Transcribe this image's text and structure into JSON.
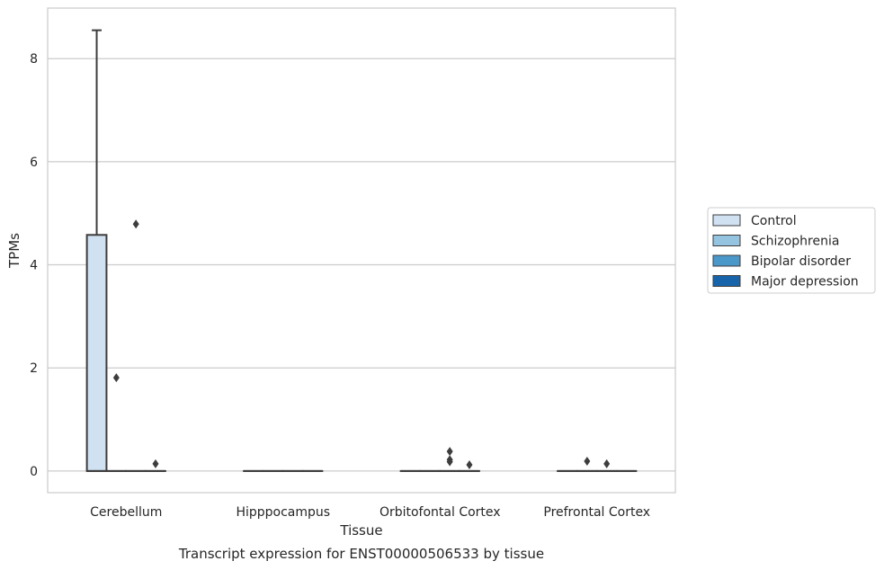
{
  "caption": "Transcript expression for ENST00000506533 by tissue",
  "chart_data": {
    "type": "box",
    "title": "",
    "xlabel": "Tissue",
    "ylabel": "TPMs",
    "categories": [
      "Cerebellum",
      "Hipppocampus",
      "Orbitofontal Cortex",
      "Prefrontal Cortex"
    ],
    "ylim": [
      -0.42,
      8.98
    ],
    "yticks": [
      0,
      2,
      4,
      6,
      8
    ],
    "grid": "horizontal",
    "legend_position": "right",
    "series": [
      {
        "name": "Control",
        "color": "#d0e1f2",
        "boxes": [
          {
            "q1": 0,
            "median": 0,
            "q3": 4.58,
            "whisker_low": 0,
            "whisker_high": 8.55,
            "outliers": []
          },
          {
            "q1": 0,
            "median": 0,
            "q3": 0,
            "whisker_low": 0,
            "whisker_high": 0,
            "outliers": []
          },
          {
            "q1": 0,
            "median": 0,
            "q3": 0,
            "whisker_low": 0,
            "whisker_high": 0,
            "outliers": []
          },
          {
            "q1": 0,
            "median": 0,
            "q3": 0,
            "whisker_low": 0,
            "whisker_high": 0,
            "outliers": []
          }
        ]
      },
      {
        "name": "Schizophrenia",
        "color": "#94c4df",
        "boxes": [
          {
            "q1": 0,
            "median": 0,
            "q3": 0,
            "whisker_low": 0,
            "whisker_high": 0,
            "outliers": [
              1.81
            ]
          },
          {
            "q1": 0,
            "median": 0,
            "q3": 0,
            "whisker_low": 0,
            "whisker_high": 0,
            "outliers": []
          },
          {
            "q1": 0,
            "median": 0,
            "q3": 0,
            "whisker_low": 0,
            "whisker_high": 0,
            "outliers": []
          },
          {
            "q1": 0,
            "median": 0,
            "q3": 0,
            "whisker_low": 0,
            "whisker_high": 0,
            "outliers": [
              0.19
            ]
          }
        ]
      },
      {
        "name": "Bipolar disorder",
        "color": "#4a98c9",
        "boxes": [
          {
            "q1": 0,
            "median": 0,
            "q3": 0,
            "whisker_low": 0,
            "whisker_high": 0,
            "outliers": [
              4.79
            ]
          },
          {
            "q1": 0,
            "median": 0,
            "q3": 0,
            "whisker_low": 0,
            "whisker_high": 0,
            "outliers": []
          },
          {
            "q1": 0,
            "median": 0,
            "q3": 0,
            "whisker_low": 0,
            "whisker_high": 0,
            "outliers": [
              0.38,
              0.22,
              0.18
            ]
          },
          {
            "q1": 0,
            "median": 0,
            "q3": 0,
            "whisker_low": 0,
            "whisker_high": 0,
            "outliers": [
              0.14
            ]
          }
        ]
      },
      {
        "name": "Major depression",
        "color": "#1764ab",
        "boxes": [
          {
            "q1": 0,
            "median": 0,
            "q3": 0,
            "whisker_low": 0,
            "whisker_high": 0,
            "outliers": [
              0.14
            ]
          },
          {
            "q1": 0,
            "median": 0,
            "q3": 0,
            "whisker_low": 0,
            "whisker_high": 0,
            "outliers": []
          },
          {
            "q1": 0,
            "median": 0,
            "q3": 0,
            "whisker_low": 0,
            "whisker_high": 0,
            "outliers": [
              0.12
            ]
          },
          {
            "q1": 0,
            "median": 0,
            "q3": 0,
            "whisker_low": 0,
            "whisker_high": 0,
            "outliers": []
          }
        ]
      }
    ]
  }
}
